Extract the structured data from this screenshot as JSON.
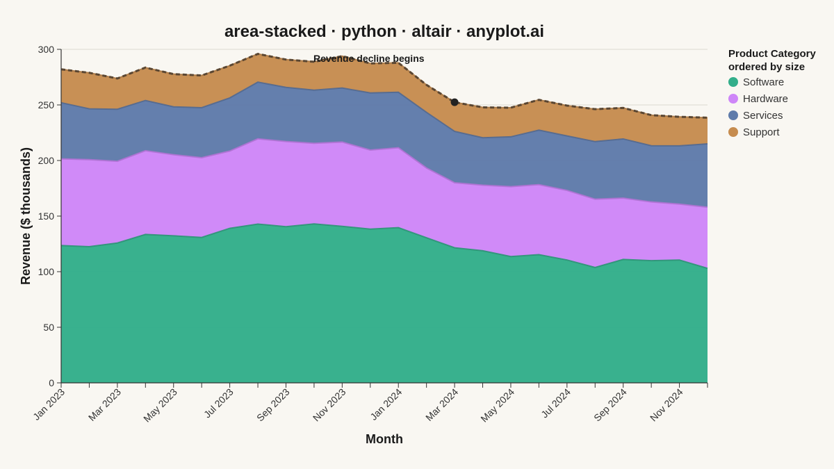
{
  "chart_data": {
    "type": "area",
    "stacked": true,
    "title": "area-stacked · python · altair · anyplot.ai",
    "xlabel": "Month",
    "ylabel": "Revenue ($ thousands)",
    "ylim": [
      0,
      300
    ],
    "yticks": [
      0,
      50,
      100,
      150,
      200,
      250,
      300
    ],
    "grid": true,
    "legend": {
      "title": [
        "Product Category",
        "ordered by size"
      ],
      "placement": "right"
    },
    "x": [
      "Jan 2023",
      "Feb 2023",
      "Mar 2023",
      "Apr 2023",
      "May 2023",
      "Jun 2023",
      "Jul 2023",
      "Aug 2023",
      "Sep 2023",
      "Oct 2023",
      "Nov 2023",
      "Dec 2023",
      "Jan 2024",
      "Feb 2024",
      "Mar 2024",
      "Apr 2024",
      "May 2024",
      "Jun 2024",
      "Jul 2024",
      "Aug 2024",
      "Sep 2024",
      "Oct 2024",
      "Nov 2024",
      "Dec 2024"
    ],
    "x_tick_labels": [
      "Jan 2023",
      "",
      "Mar 2023",
      "",
      "May 2023",
      "",
      "Jul 2023",
      "",
      "Sep 2023",
      "",
      "Nov 2023",
      "",
      "Jan 2024",
      "",
      "Mar 2024",
      "",
      "May 2024",
      "",
      "Jul 2024",
      "",
      "Sep 2024",
      "",
      "Nov 2024",
      ""
    ],
    "series": [
      {
        "name": "Software",
        "color": "#33AE8A",
        "values": [
          123.5,
          122.5,
          125.8,
          133.5,
          132.3,
          130.8,
          139.0,
          142.8,
          140.5,
          143.0,
          140.8,
          138.3,
          139.6,
          130.5,
          121.5,
          118.8,
          113.6,
          115.3,
          110.5,
          103.8,
          111.0,
          109.9,
          110.5,
          103.0
        ]
      },
      {
        "name": "Hardware",
        "color": "#CE86F8",
        "values": [
          78.0,
          78.3,
          73.5,
          75.3,
          72.9,
          71.7,
          69.5,
          76.7,
          76.6,
          72.5,
          75.8,
          71.1,
          71.9,
          62.8,
          58.5,
          59.0,
          62.9,
          63.0,
          62.6,
          61.4,
          55.2,
          52.8,
          50.3,
          55.0
        ]
      },
      {
        "name": "Services",
        "color": "#5F7BAA",
        "values": [
          50.5,
          45.7,
          46.8,
          45.2,
          43.1,
          45.0,
          47.8,
          51.0,
          48.7,
          47.8,
          48.6,
          51.4,
          49.9,
          50.0,
          46.2,
          42.7,
          44.8,
          49.0,
          49.0,
          51.8,
          53.2,
          50.6,
          52.4,
          57.0
        ]
      },
      {
        "name": "Support",
        "color": "#C68C4F",
        "values": [
          30.0,
          32.4,
          27.7,
          29.6,
          29.4,
          29.0,
          29.0,
          25.4,
          25.0,
          25.5,
          28.7,
          26.5,
          26.5,
          24.7,
          26.2,
          27.3,
          26.2,
          27.3,
          27.3,
          29.2,
          27.9,
          27.5,
          26.1,
          23.5
        ]
      }
    ],
    "total_line": {
      "style": "dashed",
      "color": "#5A4632"
    },
    "annotation": {
      "text": "Revenue decline begins",
      "x": "Mar 2024",
      "y": 252.4,
      "text_anchor_x": "Nov 2023"
    }
  }
}
